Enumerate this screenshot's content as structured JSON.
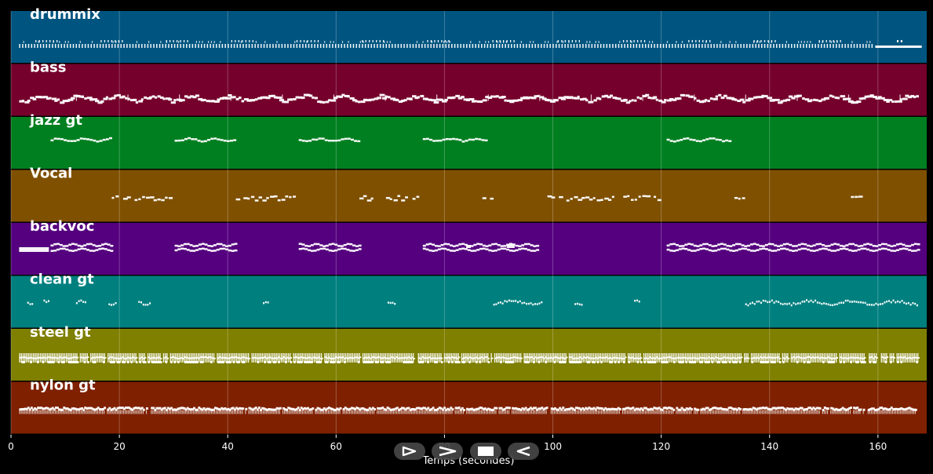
{
  "tracks": [
    {
      "name": "drummix",
      "color": "#005580",
      "pattern": "drums"
    },
    {
      "name": "bass",
      "color": "#75002b",
      "pattern": "bass"
    },
    {
      "name": "jazz gt",
      "color": "#007f20",
      "pattern": "jazz"
    },
    {
      "name": "Vocal",
      "color": "#7f5000",
      "pattern": "vocal"
    },
    {
      "name": "backvoc",
      "color": "#55007f",
      "pattern": "backvoc"
    },
    {
      "name": "clean gt",
      "color": "#007f7f",
      "pattern": "clean"
    },
    {
      "name": "steel gt",
      "color": "#7f7f00",
      "pattern": "steel"
    },
    {
      "name": "nylon gt",
      "color": "#7f2000",
      "pattern": "nylon"
    }
  ],
  "axis": {
    "title": "Temps (secondes)",
    "min": 0,
    "max": 169,
    "ticks": [
      0,
      20,
      40,
      60,
      80,
      100,
      120,
      140,
      160
    ],
    "grid": true
  },
  "note_color": "#ffffff",
  "transport": {
    "buttons": [
      {
        "name": "play-outline-button",
        "icon": "play-outline-icon"
      },
      {
        "name": "play-fast-button",
        "icon": "fast-forward-icon"
      },
      {
        "name": "stop-button",
        "icon": "stop-icon"
      },
      {
        "name": "rewind-button",
        "icon": "rewind-icon"
      }
    ]
  },
  "sections": {
    "jazz": [
      [
        7.3,
        18.5
      ],
      [
        30.2,
        41.5
      ],
      [
        53.1,
        64.5
      ],
      [
        76.0,
        87.5
      ],
      [
        121.0,
        132.5
      ]
    ],
    "backvoc": [
      [
        1.5,
        7.0
      ],
      [
        7.3,
        18.5
      ],
      [
        30.2,
        41.5
      ],
      [
        53.1,
        64.5
      ],
      [
        76.0,
        97.0
      ],
      [
        121.0,
        167.5
      ]
    ],
    "vocal": [
      [
        18.6,
        29.5
      ],
      [
        41.5,
        52.5
      ],
      [
        64.3,
        75.5
      ],
      [
        87.0,
        88.5
      ],
      [
        99.0,
        120.0
      ],
      [
        133.5,
        135.0
      ],
      [
        155.0,
        156.5
      ]
    ],
    "clean": [
      [
        3.0,
        4.2
      ],
      [
        6.0,
        7.0
      ],
      [
        12.0,
        14.0
      ],
      [
        18.0,
        19.5
      ],
      [
        23.5,
        25.5
      ],
      [
        46.5,
        47.5
      ],
      [
        69.5,
        71.0
      ],
      [
        89.0,
        98.0
      ],
      [
        104.0,
        105.5
      ],
      [
        115.0,
        116.0
      ],
      [
        135.5,
        167.5
      ]
    ]
  }
}
